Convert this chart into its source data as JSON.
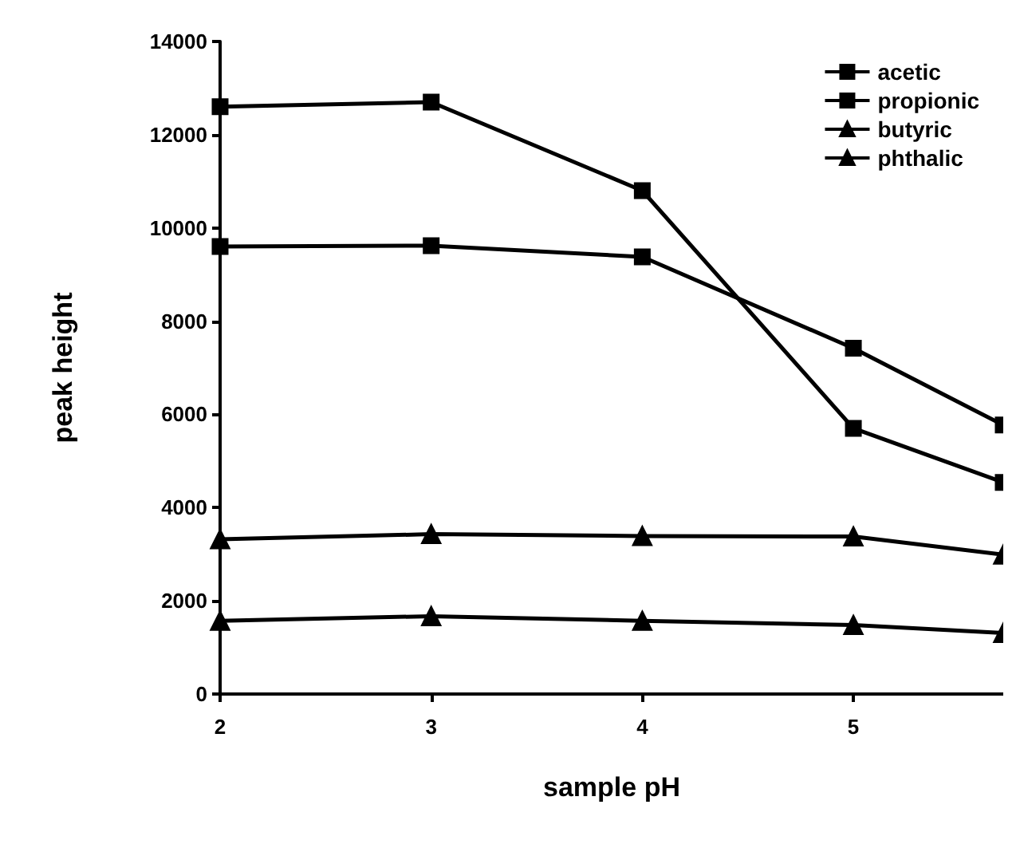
{
  "chart_data": {
    "type": "line",
    "xlabel": "sample pH",
    "ylabel": "peak height",
    "x": [
      2,
      3,
      4,
      5,
      5.71
    ],
    "xlim": [
      2,
      5.71
    ],
    "xticks": [
      2,
      3,
      4,
      5
    ],
    "ylim": [
      0,
      14000
    ],
    "yticks": [
      0,
      2000,
      4000,
      6000,
      8000,
      10000,
      12000,
      14000
    ],
    "grid": false,
    "legend": "top right",
    "line_style": "solid",
    "series": [
      {
        "name": "acetic",
        "color": "#000000",
        "marker": "square",
        "values": [
          12600,
          12700,
          10800,
          5700,
          4540
        ]
      },
      {
        "name": "propionic",
        "color": "#000000",
        "marker": "square",
        "values": [
          9600,
          9620,
          9380,
          7420,
          5770
        ]
      },
      {
        "name": "butyric",
        "color": "#000000",
        "marker": "triangle",
        "values": [
          3320,
          3430,
          3390,
          3380,
          2990
        ]
      },
      {
        "name": "phthalic",
        "color": "#000000",
        "marker": "triangle",
        "values": [
          1570,
          1670,
          1570,
          1480,
          1310
        ]
      }
    ]
  }
}
